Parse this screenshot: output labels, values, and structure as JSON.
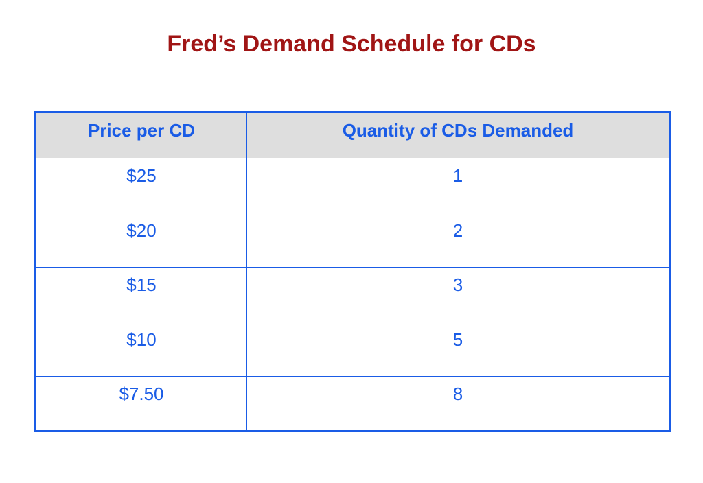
{
  "title": "Fred’s Demand Schedule for CDs",
  "colors": {
    "title": "#a01515",
    "text": "#1a5ce6",
    "border": "#1a5ce6",
    "header_bg": "#dedede",
    "body_bg": "#ffffff"
  },
  "table": {
    "headers": [
      "Price per CD",
      "Quantity of CDs Demanded"
    ],
    "rows": [
      [
        "$25",
        "1"
      ],
      [
        "$20",
        "2"
      ],
      [
        "$15",
        "3"
      ],
      [
        "$10",
        "5"
      ],
      [
        "$7.50",
        "8"
      ]
    ]
  }
}
